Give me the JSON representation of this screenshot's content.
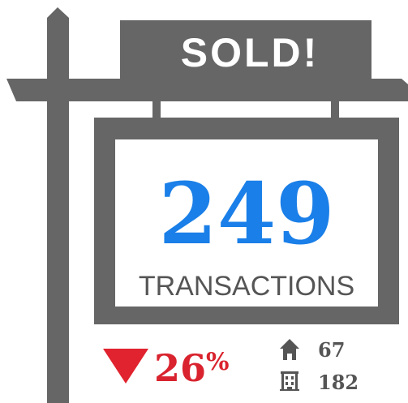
{
  "sign": {
    "title": "SOLD!",
    "count": 249,
    "label": "TRANSACTIONS"
  },
  "change": {
    "value": 26,
    "unit": "%"
  },
  "breakdown": [
    {
      "value": 67
    },
    {
      "value": 182
    }
  ]
}
